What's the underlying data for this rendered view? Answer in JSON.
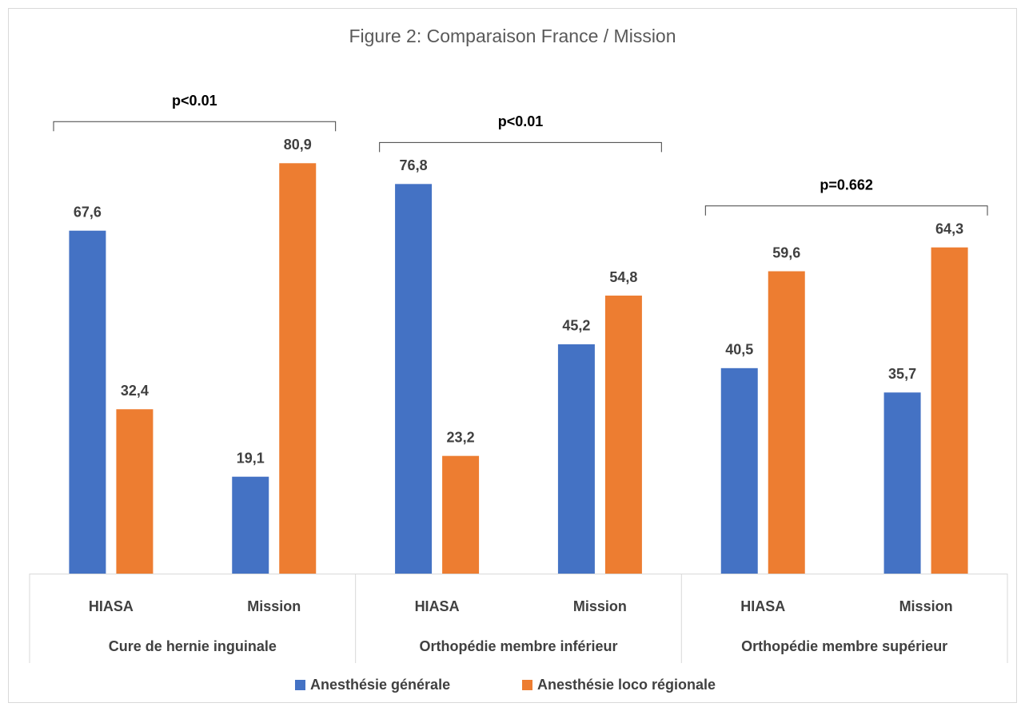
{
  "chart_data": {
    "type": "bar",
    "title": "Figure 2: Comparaison France / Mission",
    "categories": [
      "HIASA",
      "Mission",
      "HIASA",
      "Mission",
      "HIASA",
      "Mission"
    ],
    "groups": [
      "Cure de hernie inguinale",
      "Orthopédie membre inférieur",
      "Orthopédie membre supérieur"
    ],
    "annotations": [
      "p<0.01",
      "p<0.01",
      "p=0.662"
    ],
    "series": [
      {
        "name": "Anesthésie générale",
        "color": "#4472c4",
        "values": [
          67.6,
          19.1,
          76.8,
          45.2,
          40.5,
          35.7
        ],
        "value_labels": [
          "67,6",
          "19,1",
          "76,8",
          "45,2",
          "40,5",
          "35,7"
        ]
      },
      {
        "name": "Anesthésie loco régionale",
        "color": "#ed7d31",
        "values": [
          32.4,
          80.9,
          23.2,
          54.8,
          59.6,
          64.3
        ],
        "value_labels": [
          "32,4",
          "80,9",
          "23,2",
          "54,8",
          "59,6",
          "64,3"
        ]
      }
    ],
    "ylim": [
      0,
      100
    ],
    "legend": "bottom"
  }
}
